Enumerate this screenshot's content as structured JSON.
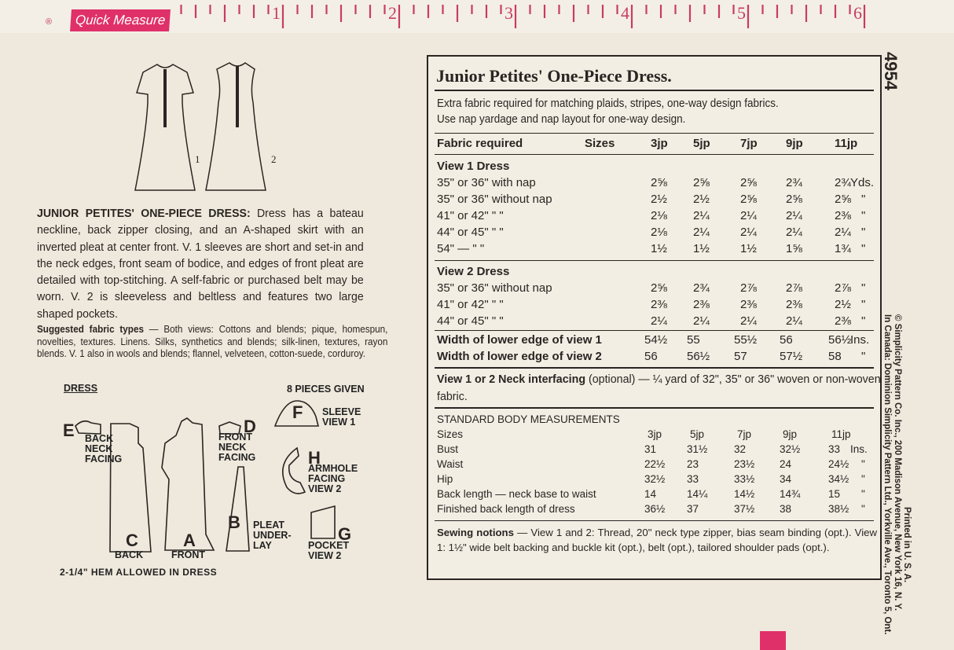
{
  "ruler": {
    "label": "Quick Measure",
    "registered": "®",
    "numbers": [
      "1",
      "2",
      "3",
      "4",
      "5",
      "6"
    ]
  },
  "pattern_number": "4954",
  "colors": {
    "accent": "#e0306a",
    "paper": "#efe9dd",
    "ink": "#2a2522"
  },
  "views": {
    "view1": "1",
    "view2": "2"
  },
  "description": {
    "title": "JUNIOR PETITES' ONE-PIECE DRESS:",
    "text": " Dress has a bateau neckline, back zipper closing, and an A-shaped skirt with an inverted pleat at center front. V. 1 sleeves are short and set-in and the neck edges, front seam of bodice, and edges of front pleat are detailed with top-stitching. A self-fabric or purchased belt may be worn. V. 2 is sleeveless and beltless and features two large shaped pockets.",
    "fabric_title": "Suggested fabric types",
    "fabric_text": " — Both views: Cottons and blends; pique, homespun, novelties, textures. Linens. Silks, synthetics and blends; silk-linen, textures, rayon blends. V. 1 also in wools and blends; flannel, velveteen, cotton-suede, corduroy."
  },
  "pieces": {
    "heading": "DRESS",
    "count": "8 PIECES GIVEN",
    "hem": "2-1/4\" HEM ALLOWED IN DRESS",
    "items": [
      {
        "letter": "E",
        "label": "BACK NECK FACING"
      },
      {
        "letter": "C",
        "label": "BACK"
      },
      {
        "letter": "A",
        "label": "FRONT"
      },
      {
        "letter": "D",
        "label": "FRONT NECK FACING"
      },
      {
        "letter": "B",
        "label": "PLEAT UNDER-LAY"
      },
      {
        "letter": "F",
        "label": "SLEEVE VIEW 1"
      },
      {
        "letter": "H",
        "label": "ARMHOLE FACING VIEW 2"
      },
      {
        "letter": "G",
        "label": "POCKET VIEW 2"
      }
    ]
  },
  "chart_box": {
    "title": "Junior Petites' One-Piece Dress.",
    "note1": "Extra fabric required for matching plaids, stripes, one-way design fabrics.",
    "note2": "Use nap yardage and nap layout for one-way design.",
    "header": {
      "label": "Fabric required",
      "sizes_label": "Sizes",
      "sizes": [
        "3jp",
        "5jp",
        "7jp",
        "9jp",
        "11jp"
      ]
    },
    "view1": {
      "heading": "View 1   Dress",
      "rows": [
        {
          "label": "35\" or 36\" with nap",
          "values": [
            "2⅝",
            "2⅝",
            "2⅝",
            "2¾",
            "2¾"
          ],
          "unit": "Yds."
        },
        {
          "label": "35\" or 36\" without nap",
          "values": [
            "2½",
            "2½",
            "2⅝",
            "2⅝",
            "2⅝"
          ],
          "unit": "\""
        },
        {
          "label": "41\" or 42\"     \"     \"",
          "values": [
            "2⅛",
            "2¼",
            "2¼",
            "2¼",
            "2⅜"
          ],
          "unit": "\""
        },
        {
          "label": "44\" or 45\"     \"     \"",
          "values": [
            "2⅛",
            "2¼",
            "2¼",
            "2¼",
            "2¼"
          ],
          "unit": "\""
        },
        {
          "label": "54\"    —    \"     \"",
          "values": [
            "1½",
            "1½",
            "1½",
            "1⅝",
            "1¾"
          ],
          "unit": "\""
        }
      ]
    },
    "view2": {
      "heading": "View 2   Dress",
      "rows": [
        {
          "label": "35\" or 36\" without nap",
          "values": [
            "2⅝",
            "2¾",
            "2⅞",
            "2⅞",
            "2⅞"
          ],
          "unit": "\""
        },
        {
          "label": "41\" or 42\"     \"     \"",
          "values": [
            "2⅜",
            "2⅜",
            "2⅜",
            "2⅜",
            "2½"
          ],
          "unit": "\""
        },
        {
          "label": "44\" or 45\"     \"     \"",
          "values": [
            "2¼",
            "2¼",
            "2¼",
            "2¼",
            "2⅜"
          ],
          "unit": "\""
        }
      ]
    },
    "width_rows": [
      {
        "label": "Width of lower edge of view 1",
        "values": [
          "54½",
          "55",
          "55½",
          "56",
          "56½"
        ],
        "unit": "Ins."
      },
      {
        "label": "Width of lower edge of view 2",
        "values": [
          "56",
          "56½",
          "57",
          "57½",
          "58"
        ],
        "unit": "\""
      }
    ],
    "interfacing": {
      "bold": "View 1 or 2  Neck interfacing",
      "text": " (optional) — ¼ yard of 32\", 35\" or 36\" woven or non-woven fabric."
    },
    "body": {
      "heading": "STANDARD BODY MEASUREMENTS",
      "sizes_label": "Sizes",
      "sizes": [
        "3jp",
        "5jp",
        "7jp",
        "9jp",
        "11jp"
      ],
      "rows": [
        {
          "label": "Bust",
          "values": [
            "31",
            "31½",
            "32",
            "32½",
            "33"
          ],
          "unit": "Ins."
        },
        {
          "label": "Waist",
          "values": [
            "22½",
            "23",
            "23½",
            "24",
            "24½"
          ],
          "unit": "\""
        },
        {
          "label": "Hip",
          "values": [
            "32½",
            "33",
            "33½",
            "34",
            "34½"
          ],
          "unit": "\""
        },
        {
          "label": "Back length — neck base to waist",
          "values": [
            "14",
            "14¼",
            "14½",
            "14¾",
            "15"
          ],
          "unit": "\""
        },
        {
          "label": "Finished back length of dress",
          "values": [
            "36½",
            "37",
            "37½",
            "38",
            "38½"
          ],
          "unit": "\""
        }
      ]
    },
    "notions": {
      "bold": "Sewing notions",
      "text": " — View 1 and 2: Thread, 20\" neck type zipper, bias seam binding (opt.). View 1: 1½\" wide belt backing and buckle kit (opt.), belt (opt.), tailored shoulder pads (opt.)."
    }
  },
  "imprint": {
    "line1": "© Simplicity Pattern Co. Inc., 200 Madison Avenue, New York 16, N. Y.",
    "line2": "In Canada: Dominion Simplicity Pattern Ltd., Yorkville Ave., Toronto 5, Ont.",
    "printed": "Printed in U. S. A."
  }
}
